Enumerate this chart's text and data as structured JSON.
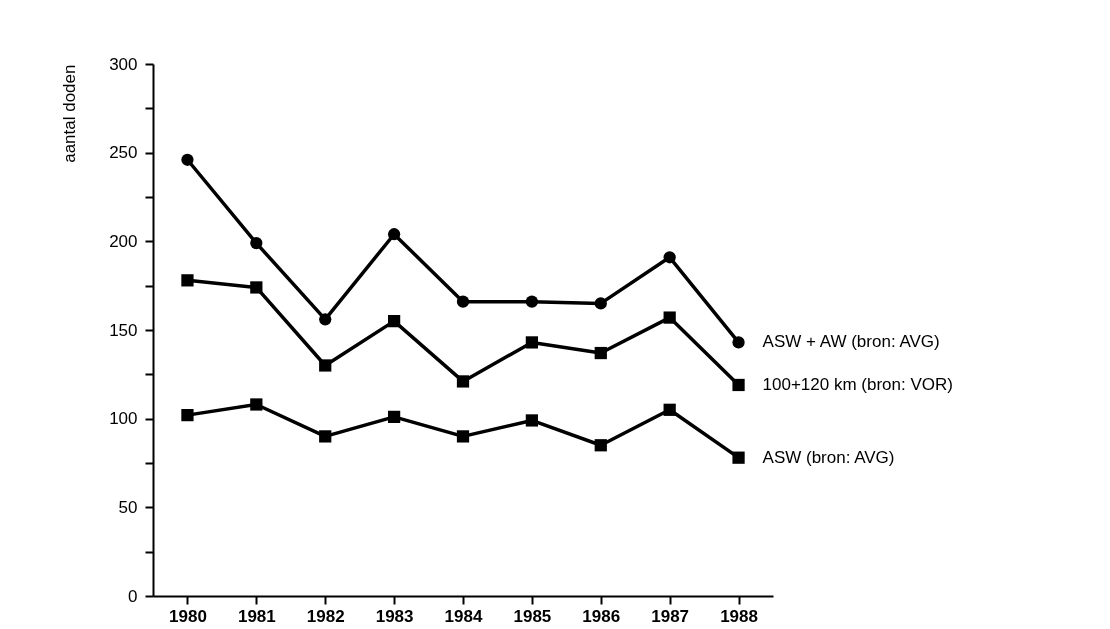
{
  "chart_data": {
    "type": "line",
    "ylabel": "aantal doden",
    "categories": [
      "1980",
      "1981",
      "1982",
      "1983",
      "1984",
      "1985",
      "1986",
      "1987",
      "1988"
    ],
    "series": [
      {
        "name": "ASW + AW (bron: AVG)",
        "color": "#000000",
        "marker": "circle",
        "values": [
          246,
          199,
          156,
          204,
          166,
          166,
          165,
          191,
          143
        ]
      },
      {
        "name": "100+120 km (bron: VOR)",
        "color": "#000000",
        "marker": "square",
        "values": [
          178,
          174,
          130,
          155,
          121,
          143,
          137,
          157,
          119
        ]
      },
      {
        "name": "ASW (bron: AVG)",
        "color": "#000000",
        "marker": "square",
        "values": [
          102,
          108,
          90,
          101,
          90,
          99,
          85,
          105,
          78
        ]
      }
    ],
    "ylim": [
      0,
      300
    ],
    "yticks": [
      0,
      {
        "value": 25,
        "label": null
      },
      50,
      {
        "value": 75,
        "label": null
      },
      100,
      {
        "value": 125,
        "label": null
      },
      150,
      {
        "value": 175,
        "label": null
      },
      200,
      {
        "value": 225,
        "label": null
      },
      250,
      {
        "value": 275,
        "label": null
      },
      300
    ],
    "line_style": "solid"
  }
}
